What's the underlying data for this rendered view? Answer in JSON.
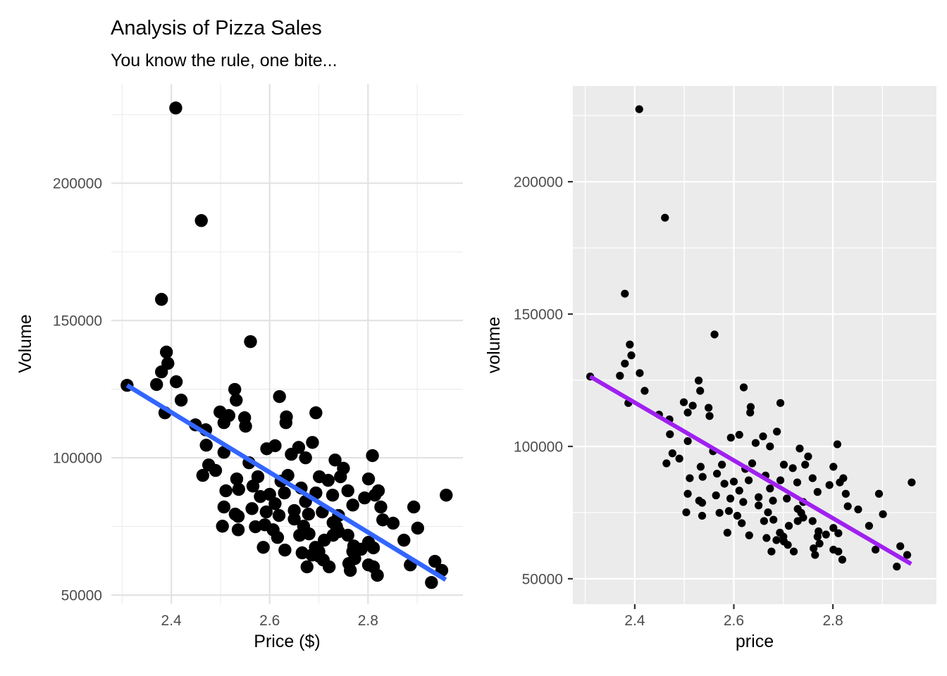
{
  "page": {
    "background": "#FFFFFF"
  },
  "left_plot": {
    "title": "Analysis of Pizza Sales",
    "subtitle": "You know the rule, one bite...",
    "xlabel": "Price ($)",
    "ylabel": "Volume"
  },
  "right_plot": {
    "xlabel": "price",
    "ylabel": "volume"
  },
  "chart_data": [
    {
      "type": "scatter",
      "title": "Analysis of Pizza Sales",
      "subtitle": "You know the rule, one bite...",
      "xlabel": "Price ($)",
      "ylabel": "Volume",
      "xlim": [
        2.278,
        2.993
      ],
      "ylim": [
        46700,
        236200
      ],
      "x_ticks": [
        2.4,
        2.6,
        2.8
      ],
      "x_tick_labels": [
        "2.4",
        "2.6",
        "2.8"
      ],
      "y_ticks": [
        50000,
        100000,
        150000,
        200000
      ],
      "y_tick_labels": [
        "50000",
        "100000",
        "150000",
        "200000"
      ],
      "x_minor": [
        2.3,
        2.5,
        2.7,
        2.9
      ],
      "y_minor": [
        75000,
        125000,
        175000,
        225000
      ],
      "grid": true,
      "legend": "none",
      "panel_bg": "#FFFFFF",
      "grid_major_color": "#E3E3E3",
      "grid_minor_color": "#EDEDED",
      "tick_label_color": "#4D4D4D",
      "tick_marks": false,
      "tick_mark_color": "#333333",
      "point_color": "#000000",
      "point_radius": 9.2,
      "trend": {
        "color": "#3366FF",
        "width": 6.5,
        "from": [
          2.31,
          126400
        ],
        "to": [
          2.958,
          55600
        ]
      },
      "points": [
        [
          2.409,
          227400
        ],
        [
          2.461,
          186400
        ],
        [
          2.38,
          157700
        ],
        [
          2.561,
          142300
        ],
        [
          2.31,
          126400
        ],
        [
          2.39,
          138500
        ],
        [
          2.393,
          134400
        ],
        [
          2.38,
          131300
        ],
        [
          2.37,
          126700
        ],
        [
          2.41,
          127700
        ],
        [
          2.42,
          121000
        ],
        [
          2.387,
          116400
        ],
        [
          2.449,
          112000
        ],
        [
          2.47,
          110200
        ],
        [
          2.499,
          116700
        ],
        [
          2.517,
          115400
        ],
        [
          2.529,
          124900
        ],
        [
          2.532,
          121000
        ],
        [
          2.549,
          114600
        ],
        [
          2.507,
          112800
        ],
        [
          2.551,
          111500
        ],
        [
          2.62,
          122300
        ],
        [
          2.634,
          114900
        ],
        [
          2.633,
          112800
        ],
        [
          2.694,
          116400
        ],
        [
          2.471,
          104600
        ],
        [
          2.507,
          102000
        ],
        [
          2.476,
          97400
        ],
        [
          2.49,
          95400
        ],
        [
          2.464,
          93600
        ],
        [
          2.594,
          103300
        ],
        [
          2.611,
          104400
        ],
        [
          2.558,
          98200
        ],
        [
          2.659,
          103800
        ],
        [
          2.687,
          105600
        ],
        [
          2.673,
          100000
        ],
        [
          2.644,
          101300
        ],
        [
          2.733,
          99200
        ],
        [
          2.75,
          96200
        ],
        [
          2.809,
          100800
        ],
        [
          2.533,
          92300
        ],
        [
          2.576,
          93100
        ],
        [
          2.637,
          93600
        ],
        [
          2.623,
          91500
        ],
        [
          2.701,
          93100
        ],
        [
          2.719,
          91800
        ],
        [
          2.744,
          93100
        ],
        [
          2.664,
          89000
        ],
        [
          2.694,
          87200
        ],
        [
          2.728,
          86400
        ],
        [
          2.759,
          88000
        ],
        [
          2.801,
          92300
        ],
        [
          2.793,
          85400
        ],
        [
          2.814,
          86400
        ],
        [
          2.511,
          88000
        ],
        [
          2.537,
          88500
        ],
        [
          2.566,
          89700
        ],
        [
          2.6,
          86700
        ],
        [
          2.63,
          87200
        ],
        [
          2.821,
          88000
        ],
        [
          2.581,
          85900
        ],
        [
          2.673,
          84100
        ],
        [
          2.611,
          83300
        ],
        [
          2.507,
          82100
        ],
        [
          2.53,
          79500
        ],
        [
          2.564,
          81500
        ],
        [
          2.593,
          80300
        ],
        [
          2.619,
          79000
        ],
        [
          2.65,
          80800
        ],
        [
          2.679,
          79500
        ],
        [
          2.707,
          80300
        ],
        [
          2.74,
          79000
        ],
        [
          2.769,
          82800
        ],
        [
          2.826,
          82100
        ],
        [
          2.893,
          82100
        ],
        [
          2.536,
          78700
        ],
        [
          2.65,
          77700
        ],
        [
          2.83,
          77400
        ],
        [
          2.504,
          75100
        ],
        [
          2.536,
          73800
        ],
        [
          2.571,
          74900
        ],
        [
          2.59,
          75600
        ],
        [
          2.607,
          73800
        ],
        [
          2.616,
          71000
        ],
        [
          2.669,
          75100
        ],
        [
          2.661,
          71800
        ],
        [
          2.68,
          72300
        ],
        [
          2.729,
          76400
        ],
        [
          2.74,
          73100
        ],
        [
          2.759,
          71800
        ],
        [
          2.729,
          71800
        ],
        [
          2.736,
          74900
        ],
        [
          2.711,
          70000
        ],
        [
          2.851,
          76200
        ],
        [
          2.873,
          70000
        ],
        [
          2.901,
          74400
        ],
        [
          2.587,
          67400
        ],
        [
          2.666,
          65400
        ],
        [
          2.693,
          67400
        ],
        [
          2.701,
          64100
        ],
        [
          2.771,
          67900
        ],
        [
          2.773,
          63300
        ],
        [
          2.7,
          65900
        ],
        [
          2.686,
          64600
        ],
        [
          2.709,
          62800
        ],
        [
          2.721,
          60300
        ],
        [
          2.786,
          66700
        ],
        [
          2.769,
          65900
        ],
        [
          2.761,
          61500
        ],
        [
          2.801,
          69200
        ],
        [
          2.811,
          67200
        ],
        [
          2.936,
          62300
        ],
        [
          2.886,
          61000
        ],
        [
          2.801,
          61000
        ],
        [
          2.811,
          60300
        ],
        [
          2.676,
          60300
        ],
        [
          2.631,
          66400
        ],
        [
          2.764,
          59000
        ],
        [
          2.819,
          57200
        ],
        [
          2.95,
          59000
        ],
        [
          2.929,
          54600
        ],
        [
          2.959,
          86400
        ]
      ]
    },
    {
      "type": "scatter",
      "title": "",
      "subtitle": "",
      "xlabel": "price",
      "ylabel": "volume",
      "xlim": [
        2.275,
        3.009
      ],
      "ylim": [
        40400,
        236200
      ],
      "x_ticks": [
        2.4,
        2.6,
        2.8
      ],
      "x_tick_labels": [
        "2.4",
        "2.6",
        "2.8"
      ],
      "y_ticks": [
        50000,
        100000,
        150000,
        200000
      ],
      "y_tick_labels": [
        "50000",
        "100000",
        "150000",
        "200000"
      ],
      "x_minor": [
        2.3,
        2.5,
        2.7,
        2.9
      ],
      "y_minor": [
        75000,
        125000,
        175000,
        225000
      ],
      "grid": true,
      "legend": "none",
      "panel_bg": "#EBEBEB",
      "grid_major_color": "#FFFFFF",
      "grid_minor_color": "#FFFFFF",
      "tick_label_color": "#4D4D4D",
      "tick_marks": true,
      "tick_mark_color": "#333333",
      "point_color": "#000000",
      "point_radius": 5.6,
      "trend": {
        "color": "#A020F0",
        "width": 6,
        "from": [
          2.31,
          126400
        ],
        "to": [
          2.958,
          55600
        ]
      },
      "points_source": 0
    }
  ]
}
